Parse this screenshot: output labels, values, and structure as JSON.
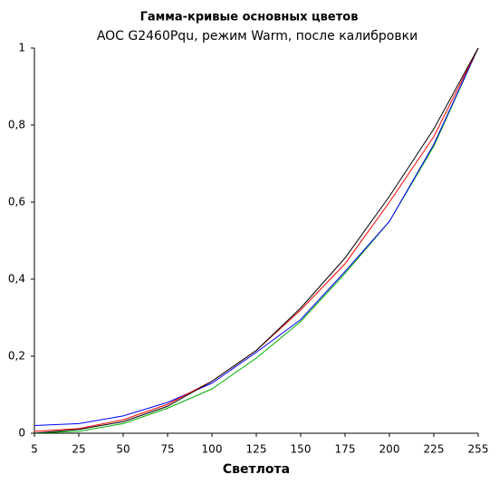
{
  "chart_data": {
    "type": "line",
    "title": "Гамма-кривые  основных цветов",
    "subtitle": "AOC G2460Pqu, режим Warm, после калибровки",
    "x_label": "Светлота",
    "categories": [
      "5",
      "25",
      "50",
      "75",
      "100",
      "125",
      "150",
      "175",
      "200",
      "225",
      "255"
    ],
    "series": [
      {
        "color": "#00b000",
        "values": [
          0,
          0.005,
          0.025,
          0.065,
          0.115,
          0.195,
          0.29,
          0.415,
          0.55,
          0.745,
          1
        ]
      },
      {
        "color": "#0000ff",
        "values": [
          0.02,
          0.025,
          0.045,
          0.08,
          0.13,
          0.21,
          0.295,
          0.42,
          0.55,
          0.75,
          1
        ]
      },
      {
        "color": "#ff0000",
        "values": [
          0.005,
          0.012,
          0.035,
          0.075,
          0.135,
          0.215,
          0.32,
          0.44,
          0.6,
          0.77,
          1
        ]
      },
      {
        "color": "#000000",
        "values": [
          0,
          0.01,
          0.03,
          0.07,
          0.135,
          0.215,
          0.325,
          0.455,
          0.615,
          0.79,
          1
        ]
      }
    ],
    "ylim": [
      0,
      1
    ],
    "yticks": [
      0,
      {
        "value": 0.2,
        "label": "0,2"
      },
      {
        "value": 0.4,
        "label": "0,4"
      },
      {
        "value": 0.6,
        "label": "0,6"
      },
      {
        "value": 0.8,
        "label": "0,8"
      },
      1
    ],
    "grid": false
  }
}
